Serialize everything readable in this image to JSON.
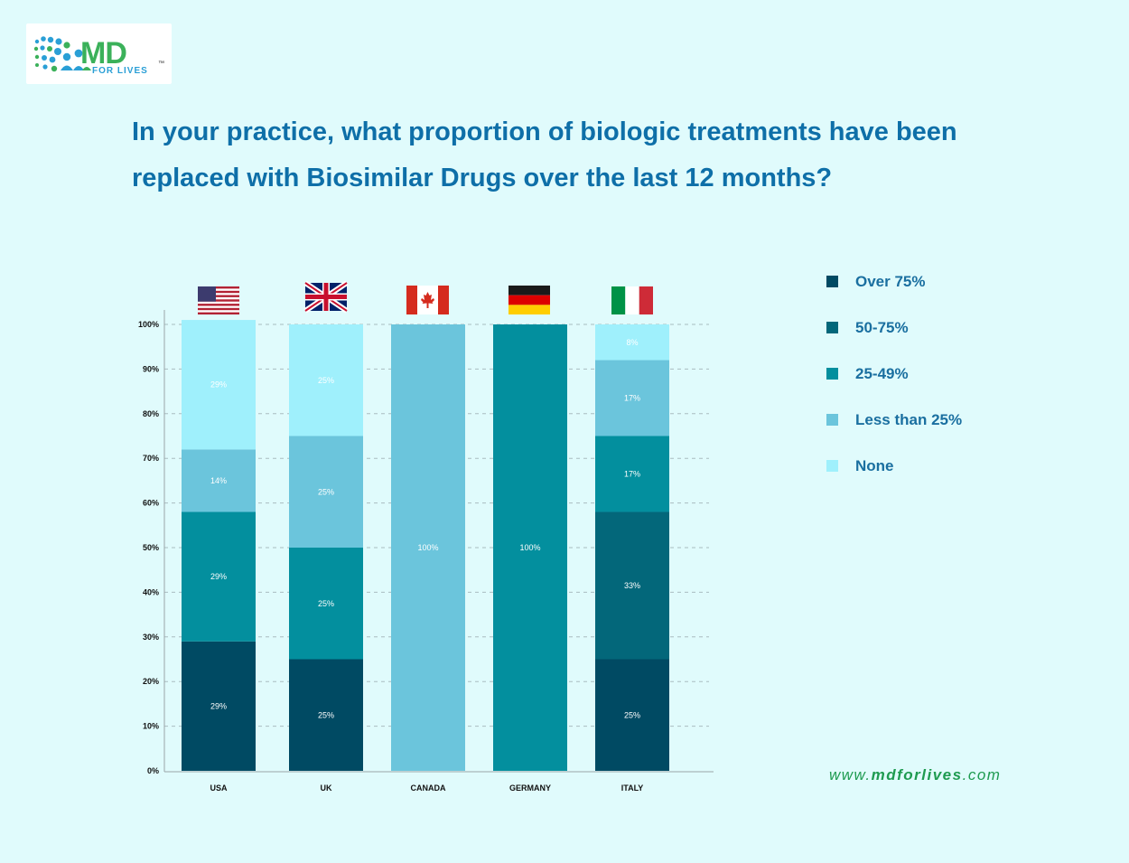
{
  "brand": {
    "logo_text": "MD",
    "logo_subtext": "FOR LIVES",
    "trademark": "™",
    "website_prefix": "www.",
    "website_brand": "mdforlives",
    "website_suffix": ".com"
  },
  "chart_data": {
    "type": "bar",
    "stacked": true,
    "title": "In your practice, what proportion of biologic treatments have been replaced with Biosimilar Drugs over the last 12 months?",
    "xlabel": "",
    "ylabel": "",
    "ylim": [
      0,
      100
    ],
    "yticks": [
      "0%",
      "10%",
      "20%",
      "30%",
      "40%",
      "50%",
      "60%",
      "70%",
      "80%",
      "90%",
      "100%"
    ],
    "grid": "horizontal-dashed",
    "legend_position": "right",
    "categories": [
      "USA",
      "UK",
      "CANADA",
      "GERMANY",
      "ITALY"
    ],
    "flags": [
      "us-flag-icon",
      "uk-flag-icon",
      "canada-flag-icon",
      "germany-flag-icon",
      "italy-flag-icon"
    ],
    "series": [
      {
        "name": "Over 75%",
        "color": "#004a63",
        "values": [
          29,
          25,
          0,
          0,
          25
        ],
        "labels": [
          "29%",
          "25%",
          "",
          "",
          "25%"
        ]
      },
      {
        "name": "50-75%",
        "color": "#03677a",
        "values": [
          0,
          0,
          0,
          0,
          33
        ],
        "labels": [
          "",
          "",
          "",
          "",
          "33%"
        ]
      },
      {
        "name": "25-49%",
        "color": "#038f9e",
        "values": [
          29,
          25,
          0,
          100,
          17
        ],
        "labels": [
          "29%",
          "25%",
          "",
          "100%",
          "17%"
        ]
      },
      {
        "name": "Less than 25%",
        "color": "#6bc5dc",
        "values": [
          14,
          25,
          100,
          0,
          17
        ],
        "labels": [
          "14%",
          "25%",
          "100%",
          "",
          "17%"
        ]
      },
      {
        "name": "None",
        "color": "#9ff0fc",
        "values": [
          29,
          25,
          0,
          0,
          8
        ],
        "labels": [
          "29%",
          "25%",
          "",
          "",
          "8%"
        ]
      }
    ]
  }
}
